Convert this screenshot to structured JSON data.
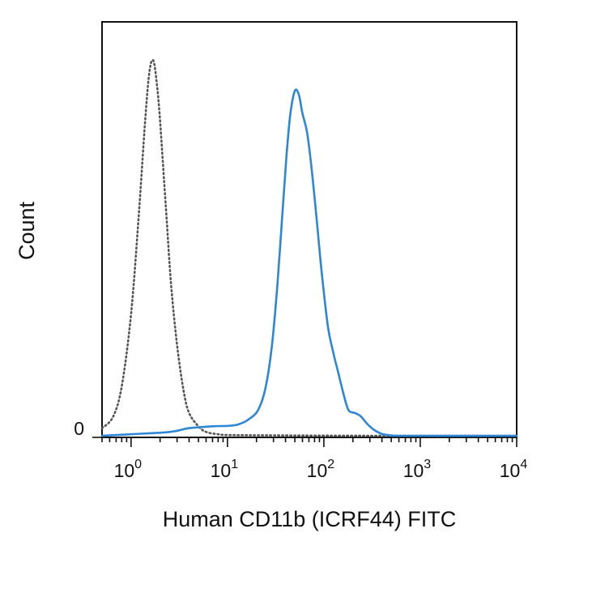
{
  "chart_data": {
    "type": "line",
    "title": "",
    "xlabel": "Human CD11b (ICRF44) FITC",
    "ylabel": "Count",
    "x_scale": "log",
    "xlim": [
      0.5,
      10000
    ],
    "ylim": [
      0,
      1.0
    ],
    "y_tick_labels": [
      {
        "value": 0,
        "label": "0"
      }
    ],
    "x_tick_labels": [
      {
        "value": 1,
        "base": "10",
        "exp": "0"
      },
      {
        "value": 10,
        "base": "10",
        "exp": "1"
      },
      {
        "value": 100,
        "base": "10",
        "exp": "2"
      },
      {
        "value": 1000,
        "base": "10",
        "exp": "3"
      },
      {
        "value": 10000,
        "base": "10",
        "exp": "4"
      }
    ],
    "grid": false,
    "series": [
      {
        "style": "dotted",
        "color": "#555555",
        "points": [
          [
            0.5,
            0.02
          ],
          [
            0.65,
            0.05
          ],
          [
            0.8,
            0.13
          ],
          [
            1.0,
            0.32
          ],
          [
            1.2,
            0.58
          ],
          [
            1.4,
            0.83
          ],
          [
            1.55,
            0.96
          ],
          [
            1.7,
            0.99
          ],
          [
            1.85,
            0.93
          ],
          [
            2.0,
            0.83
          ],
          [
            2.3,
            0.6
          ],
          [
            2.6,
            0.4
          ],
          [
            3.0,
            0.24
          ],
          [
            3.5,
            0.12
          ],
          [
            4.0,
            0.06
          ],
          [
            5.0,
            0.025
          ],
          [
            6.0,
            0.01
          ],
          [
            8.0,
            0.004
          ],
          [
            10,
            0.002
          ],
          [
            30,
            0.001
          ],
          [
            300,
            0.0
          ],
          [
            10000,
            0.0
          ]
        ]
      },
      {
        "style": "solid",
        "color": "#2e86d6",
        "points": [
          [
            0.5,
            0.0
          ],
          [
            1.0,
            0.004
          ],
          [
            2.5,
            0.01
          ],
          [
            4.0,
            0.02
          ],
          [
            7.0,
            0.025
          ],
          [
            10,
            0.026
          ],
          [
            13,
            0.03
          ],
          [
            17,
            0.045
          ],
          [
            21,
            0.07
          ],
          [
            25,
            0.13
          ],
          [
            29,
            0.24
          ],
          [
            33,
            0.4
          ],
          [
            37,
            0.58
          ],
          [
            41,
            0.74
          ],
          [
            45,
            0.85
          ],
          [
            50,
            0.91
          ],
          [
            55,
            0.9
          ],
          [
            60,
            0.85
          ],
          [
            67,
            0.8
          ],
          [
            75,
            0.7
          ],
          [
            85,
            0.56
          ],
          [
            95,
            0.43
          ],
          [
            110,
            0.29
          ],
          [
            125,
            0.22
          ],
          [
            140,
            0.17
          ],
          [
            160,
            0.11
          ],
          [
            180,
            0.068
          ],
          [
            210,
            0.06
          ],
          [
            240,
            0.052
          ],
          [
            280,
            0.032
          ],
          [
            330,
            0.016
          ],
          [
            400,
            0.005
          ],
          [
            500,
            0.001
          ],
          [
            700,
            0.0
          ],
          [
            10000,
            0.0
          ]
        ]
      }
    ]
  }
}
